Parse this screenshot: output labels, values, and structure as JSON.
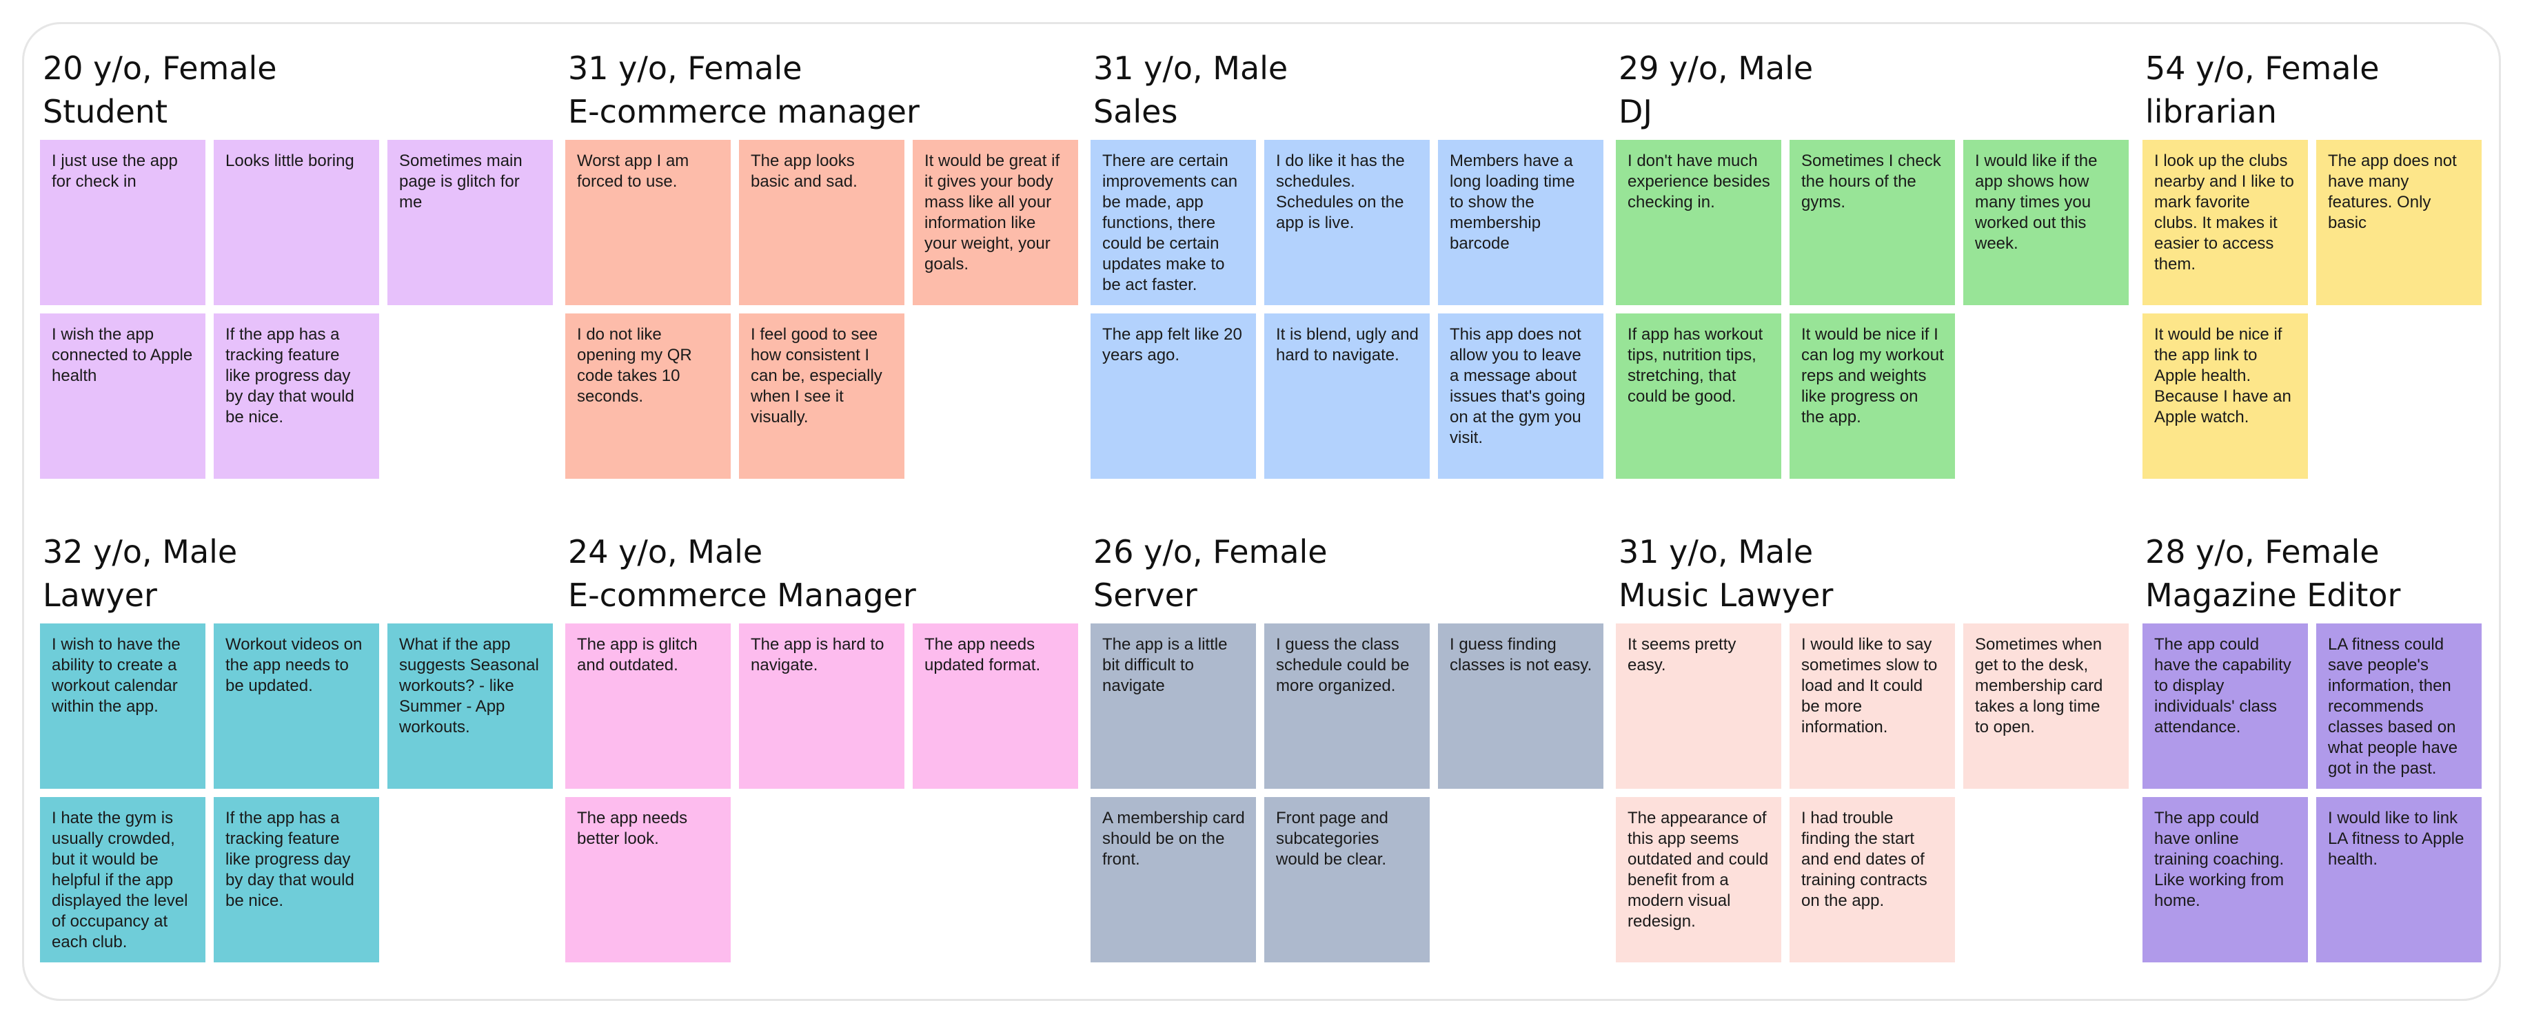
{
  "personas": [
    {
      "title": "20 y/o, Female",
      "role": "Student",
      "color": "#e7c1fb",
      "notes": [
        "I just use the app for check in",
        "Looks little boring",
        "Sometimes main page is glitch for me",
        "I wish the app connected to Apple health",
        "If the app has a tracking feature like progress day by day that would be nice."
      ]
    },
    {
      "title": "31 y/o, Female",
      "role": "E-commerce manager",
      "color": "#fdbcaa",
      "notes": [
        "Worst app I am forced to use.",
        "The app looks basic and sad.",
        "It would be great if it gives your body mass like all your information like your weight, your goals.",
        "I do not like opening my QR code takes 10 seconds.",
        "I feel good to see how consistent I can be, especially when I see it visually."
      ]
    },
    {
      "title": "31 y/o, Male",
      "role": "Sales",
      "color": "#b3d2fd",
      "notes": [
        "There are certain improvements can be made, app functions, there could be certain updates make to be act faster.",
        "I do like it has the schedules. Schedules on the app is live.",
        "Members have a long loading time to show the membership barcode",
        "The app felt like 20 years ago.",
        "It is blend, ugly and hard to navigate.",
        "This app does not allow you to leave a message about issues that's going on at the gym you visit."
      ]
    },
    {
      "title": "29 y/o, Male",
      "role": "DJ",
      "color": "#98e497",
      "notes": [
        "I don't have much experience besides checking in.",
        "Sometimes I check the hours of the gyms.",
        "I would like if the app shows how many times you worked out this week.",
        "If app has workout tips, nutrition tips, stretching, that could be good.",
        "It would be nice if I can log my workout reps and weights like progress on the app."
      ]
    },
    {
      "title": "54 y/o, Female",
      "role": "librarian",
      "color": "#fde68a",
      "notes": [
        "I look up the clubs nearby and I like to mark favorite clubs. It makes it easier to access them.",
        "The app does not have many features. Only basic",
        "",
        "It would be nice if the app link to Apple health. Because I have an Apple watch."
      ]
    },
    {
      "title": "32 y/o, Male",
      "role": "Lawyer",
      "color": "#6fcdd9",
      "notes": [
        "I wish to have the ability to create a workout calendar within the app.",
        "Workout videos on the app needs to be updated.",
        "What if the app suggests Seasonal workouts? - like Summer - App workouts.",
        "I hate the gym is usually crowded, but it would be helpful if the app displayed the level of occupancy at each club.",
        "If the app has a tracking feature like progress day by day that would be nice."
      ]
    },
    {
      "title": "24 y/o, Male",
      "role": "E-commerce Manager",
      "color": "#fdbcee",
      "notes": [
        "The app is glitch and outdated.",
        "The app is hard to navigate.",
        "The app needs updated format.",
        "The app needs better look."
      ]
    },
    {
      "title": "26 y/o, Female",
      "role": "Server",
      "color": "#adb9cd",
      "notes": [
        "The app is a little bit difficult to navigate",
        "I guess the class schedule could be more organized.",
        "I guess finding classes is not easy.",
        "A membership card should be on the front.",
        "Front page and subcategories would be clear."
      ]
    },
    {
      "title": "31 y/o, Male",
      "role": "Music Lawyer",
      "color": "#fde0db",
      "notes": [
        "It seems pretty easy.",
        "I would like to say sometimes slow to load and It could be more information.",
        "Sometimes when get to the desk, membership card takes a long time to open.",
        "The appearance of this app seems outdated and could benefit from a modern visual redesign.",
        "I had trouble finding the start and end dates of training contracts on the app."
      ]
    },
    {
      "title": "28 y/o, Female",
      "role": "Magazine Editor",
      "color": "#b09aea",
      "notes": [
        "The app could have the capability to display individuals' class attendance.",
        "LA fitness could save people's information, then recommends classes based on what people have got in the past.",
        "",
        "The app could have online training coaching. Like working from home.",
        "I would like to link LA fitness to Apple health."
      ]
    }
  ]
}
